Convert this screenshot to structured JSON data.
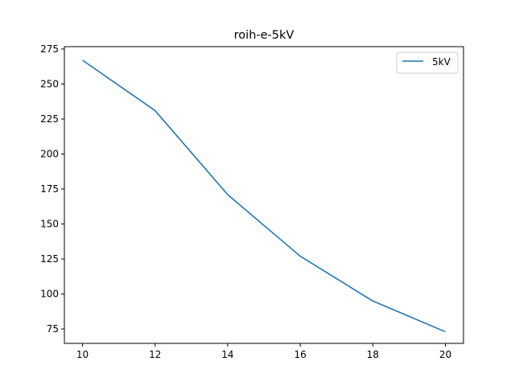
{
  "chart_data": {
    "type": "line",
    "title": "roih-e-5kV",
    "xlabel": "",
    "ylabel": "",
    "x": [
      10,
      12,
      14,
      16,
      18,
      20
    ],
    "series": [
      {
        "name": "5kV",
        "color": "#1f77b4",
        "values": [
          267,
          231,
          171,
          127,
          95,
          73
        ]
      }
    ],
    "xlim": [
      9.5,
      20.5
    ],
    "ylim": [
      64.7,
      276.7
    ],
    "xticks": [
      10,
      12,
      14,
      16,
      18,
      20
    ],
    "yticks": [
      75,
      100,
      125,
      150,
      175,
      200,
      225,
      250,
      275
    ],
    "grid": false,
    "legend_position": "top-right"
  }
}
